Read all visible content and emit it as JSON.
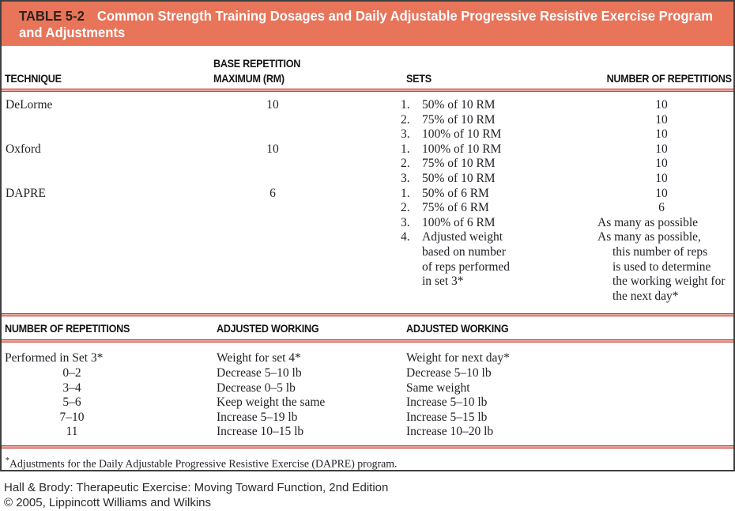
{
  "banner": {
    "label": "TABLE 5-2",
    "title_line1": "Common Strength Training Dosages and Daily Adjustable Progressive Resistive Exercise Program",
    "title_line2": "and Adjustments"
  },
  "colors": {
    "banner_background": "#e8745a",
    "banner_label_text": "#2d241f",
    "banner_title_text": "#ffffff",
    "rule_red": "#c23a31"
  },
  "table1": {
    "headers": {
      "technique": "TECHNIQUE",
      "base_rm_line1": "BASE REPETITION",
      "base_rm_line2": "MAXIMUM (RM)",
      "sets": "SETS",
      "reps": "NUMBER OF REPETITIONS"
    },
    "rows": [
      {
        "technique": "DeLorme",
        "base_rm": "10",
        "sets": [
          {
            "n": "1.",
            "t": "50% of 10 RM"
          },
          {
            "n": "2.",
            "t": "75% of 10 RM"
          },
          {
            "n": "3.",
            "t": "100% of 10 RM"
          }
        ],
        "reps": [
          "10",
          "10",
          "10"
        ]
      },
      {
        "technique": "Oxford",
        "base_rm": "10",
        "sets": [
          {
            "n": "1.",
            "t": "100% of 10 RM"
          },
          {
            "n": "2.",
            "t": "75% of 10 RM"
          },
          {
            "n": "3.",
            "t": "50% of 10 RM"
          }
        ],
        "reps": [
          "10",
          "10",
          "10"
        ]
      },
      {
        "technique": "DAPRE",
        "base_rm": "6",
        "sets": [
          {
            "n": "1.",
            "t": "50% of 6 RM"
          },
          {
            "n": "2.",
            "t": "75% of 6 RM"
          },
          {
            "n": "3.",
            "t": "100% of 6 RM"
          },
          {
            "n": "4.",
            "t": "Adjusted weight"
          },
          {
            "n": "",
            "t": "based on number"
          },
          {
            "n": "",
            "t": "of reps performed"
          },
          {
            "n": "",
            "t": "in set 3*"
          }
        ],
        "reps": [
          "10",
          "6",
          "As many as possible",
          "As many as possible,",
          "this number of reps",
          "is used to determine",
          "the working weight for",
          "the next day*"
        ]
      }
    ]
  },
  "table2": {
    "headers": [
      "NUMBER OF REPETITIONS",
      "ADJUSTED WORKING",
      "ADJUSTED WORKING"
    ],
    "rows": [
      [
        "Performed in Set 3*",
        "Weight for set 4*",
        "Weight for next day*"
      ],
      [
        "0–2",
        "Decrease 5–10 lb",
        "Decrease 5–10 lb"
      ],
      [
        "3–4",
        "Decrease 0–5 lb",
        "Same weight"
      ],
      [
        "5–6",
        "Keep weight the same",
        "Increase 5–10 lb"
      ],
      [
        "7–10",
        "Increase 5–19 lb",
        "Increase 5–15 lb"
      ],
      [
        "11",
        "Increase 10–15 lb",
        "Increase 10–20 lb"
      ]
    ]
  },
  "footnote": {
    "marker": "*",
    "text": "Adjustments for the Daily Adjustable Progressive Resistive Exercise (DAPRE) program."
  },
  "credits": {
    "line1": "Hall & Brody: Therapeutic Exercise: Moving Toward Function, 2nd Edition",
    "line2": "© 2005, Lippincott Williams and Wilkins"
  }
}
